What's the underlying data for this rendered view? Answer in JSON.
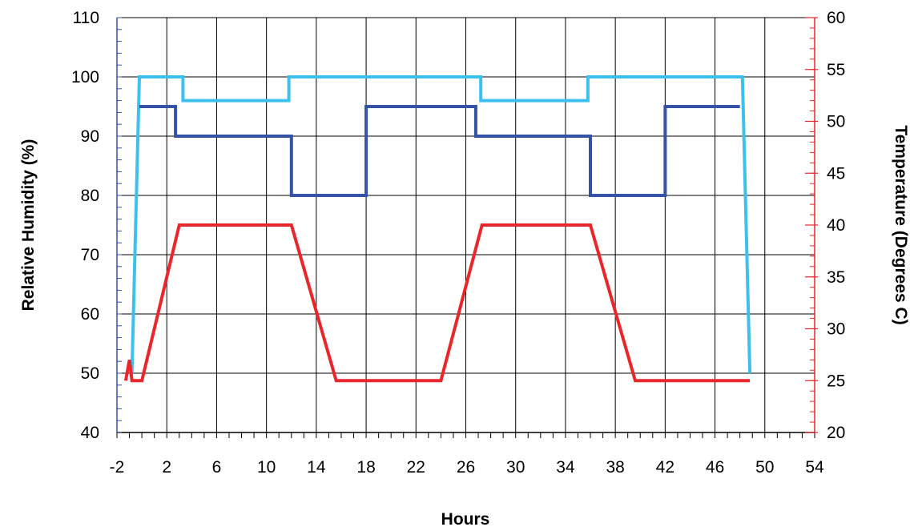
{
  "chart_data": {
    "type": "line",
    "xlabel": "Hours",
    "ylabel": "Relative Humidity (%)",
    "y2label": "Temperature (Degrees C)",
    "xlim": [
      -2,
      54
    ],
    "ylim": [
      40,
      110
    ],
    "y2lim": [
      20,
      60
    ],
    "x_ticks": [
      -2,
      2,
      6,
      10,
      14,
      18,
      22,
      26,
      30,
      34,
      38,
      42,
      46,
      50,
      54
    ],
    "x_ticks_labels": [
      "-2",
      "2",
      "6",
      "10",
      "14",
      "18",
      "22",
      "26",
      "30",
      "34",
      "38",
      "42",
      "46",
      "50",
      "54"
    ],
    "y_ticks": [
      40,
      50,
      60,
      70,
      80,
      90,
      100,
      110
    ],
    "y_ticks_labels": [
      "40",
      "50",
      "60",
      "70",
      "80",
      "90",
      "100",
      "110"
    ],
    "y2_ticks": [
      20,
      25,
      30,
      35,
      40,
      45,
      50,
      55,
      60
    ],
    "y2_ticks_labels": [
      "20",
      "25",
      "30",
      "35",
      "40",
      "45",
      "50",
      "55",
      "60"
    ],
    "grid": true,
    "legend": "none",
    "colors": {
      "rh_upper": "#3ec0ec",
      "rh_lower": "#3453a4",
      "temperature": "#e8262c",
      "y2_axis": "#e8262c",
      "y_axis": "#3453a4"
    },
    "series": [
      {
        "axis": "left",
        "color_key": "rh_upper",
        "x": [
          -0.8,
          -0.2,
          3.3,
          3.3,
          11.8,
          11.8,
          27.2,
          27.2,
          35.8,
          35.8,
          48.2,
          48.8
        ],
        "y": [
          50,
          100,
          100,
          96,
          96,
          100,
          100,
          96,
          96,
          100,
          100,
          50
        ]
      },
      {
        "axis": "left",
        "color_key": "rh_lower",
        "x": [
          -0.2,
          0,
          2.7,
          2.7,
          12,
          12,
          18,
          18,
          26.8,
          26.8,
          36,
          36,
          42,
          42,
          48
        ],
        "y": [
          95,
          95,
          95,
          90,
          90,
          80,
          80,
          95,
          95,
          90,
          90,
          80,
          80,
          95,
          95
        ]
      },
      {
        "axis": "right",
        "color_key": "temperature",
        "x": [
          -1.3,
          -1,
          -0.8,
          -0.5,
          0,
          3,
          12,
          15.6,
          24,
          27.3,
          36,
          39.6,
          48.8
        ],
        "y": [
          25,
          27,
          25,
          25,
          25,
          40,
          40,
          25,
          25,
          40,
          40,
          25,
          25
        ]
      }
    ]
  }
}
